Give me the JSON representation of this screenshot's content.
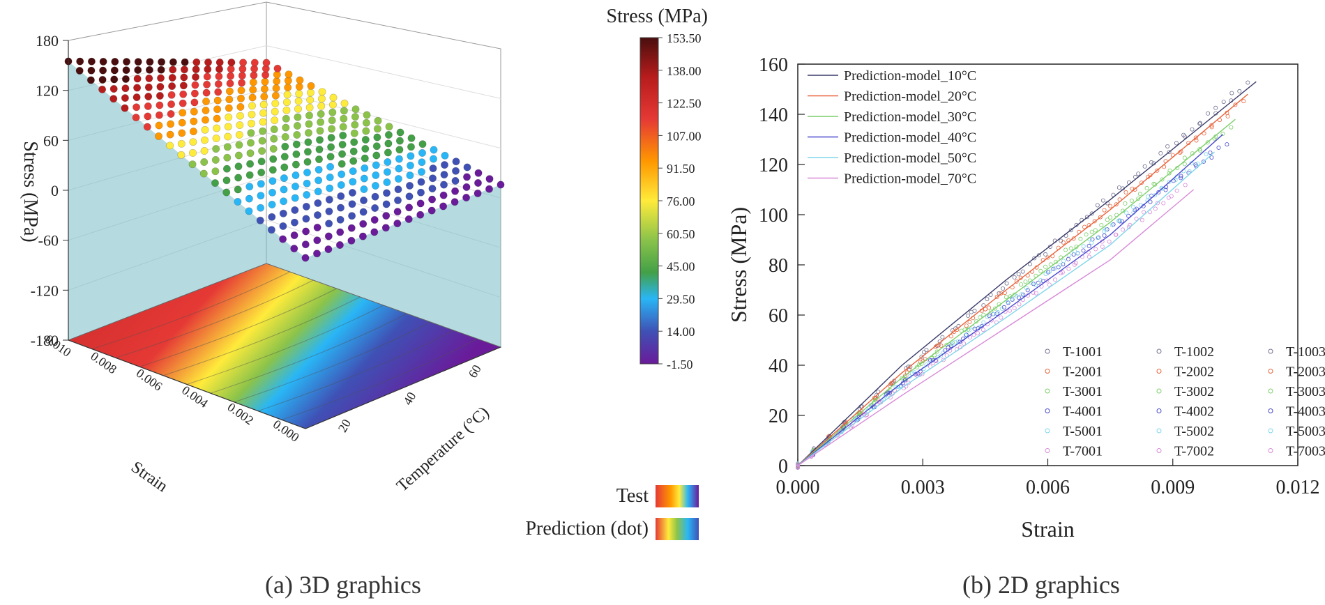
{
  "captions": {
    "left": "(a) 3D graphics",
    "right": "(b) 2D graphics"
  },
  "chart_data": [
    {
      "type": "surface3d",
      "zlabel": "Stress (MPa)",
      "xlabel": "Strain",
      "ylabel": "Temperature (°C)",
      "zticks": [
        "180",
        "120",
        "60",
        "0",
        "-60",
        "-120",
        "-180"
      ],
      "xticks": [
        "0.010",
        "0.008",
        "0.006",
        "0.004",
        "0.002",
        "0.000"
      ],
      "yticks": [
        "20",
        "40",
        "60"
      ],
      "zlim": [
        -180,
        180
      ],
      "xlim": [
        0,
        0.011
      ],
      "ylim": [
        10,
        70
      ],
      "colorbar": {
        "title": "Stress (MPa)",
        "ticks": [
          "153.50",
          "138.00",
          "122.50",
          "107.00",
          "91.50",
          "76.00",
          "60.50",
          "45.00",
          "29.50",
          "14.00",
          "-1.50"
        ],
        "range": [
          -1.5,
          153.5
        ]
      },
      "legend": [
        {
          "label": "Test",
          "kind": "surface"
        },
        {
          "label": "Prediction (dot)",
          "kind": "dots"
        }
      ],
      "colors": [
        "#6a1b9a",
        "#3f51b5",
        "#29b6f6",
        "#43a047",
        "#8bc34a",
        "#ffeb3b",
        "#ff9800",
        "#e53935",
        "#b71c1c",
        "#4a0e0e"
      ],
      "surface_model": {
        "stress_at_max_strain_10C": 153.5,
        "stress_at_max_strain_70C": 120,
        "max_strain": 0.011
      }
    },
    {
      "type": "line",
      "xlabel": "Strain",
      "ylabel": "Stress (MPa)",
      "xlim": [
        0,
        0.012
      ],
      "ylim": [
        0,
        160
      ],
      "xticks": [
        "0.000",
        "0.003",
        "0.006",
        "0.009",
        "0.012"
      ],
      "yticks": [
        "0",
        "20",
        "40",
        "60",
        "80",
        "100",
        "120",
        "140",
        "160"
      ],
      "series": [
        {
          "name": "Prediction-model_10°C",
          "color": "#3a3a6a",
          "x": [
            0,
            0.0025,
            0.005,
            0.0075,
            0.011
          ],
          "y": [
            0,
            40,
            74,
            106,
            153
          ]
        },
        {
          "name": "Prediction-model_20°C",
          "color": "#e8643c",
          "x": [
            0,
            0.0025,
            0.005,
            0.0075,
            0.0108
          ],
          "y": [
            0,
            37,
            70,
            102,
            148
          ]
        },
        {
          "name": "Prediction-model_30°C",
          "color": "#7ccf6a",
          "x": [
            0,
            0.0025,
            0.005,
            0.0075,
            0.0105
          ],
          "y": [
            0,
            35,
            66,
            97,
            138
          ]
        },
        {
          "name": "Prediction-model_40°C",
          "color": "#4a4ad0",
          "x": [
            0,
            0.0025,
            0.005,
            0.0075,
            0.0102
          ],
          "y": [
            0,
            33,
            62,
            92,
            132
          ]
        },
        {
          "name": "Prediction-model_50°C",
          "color": "#7fd6ea",
          "x": [
            0,
            0.0025,
            0.005,
            0.0075,
            0.01
          ],
          "y": [
            0,
            31,
            59,
            88,
            125
          ]
        },
        {
          "name": "Prediction-model_70°C",
          "color": "#d88ad8",
          "x": [
            0,
            0.0025,
            0.005,
            0.0075,
            0.0095
          ],
          "y": [
            0,
            28,
            55,
            82,
            110
          ]
        }
      ],
      "test_series": [
        {
          "name": "T-1001",
          "color": "#707090",
          "marker": "circle",
          "xmax": 0.0108,
          "ymax": 153
        },
        {
          "name": "T-1002",
          "color": "#707090",
          "marker": "circle-small",
          "xmax": 0.0106,
          "ymax": 150
        },
        {
          "name": "T-1003",
          "color": "#707090",
          "marker": "triangle",
          "xmax": 0.0104,
          "ymax": 146
        },
        {
          "name": "T-2001",
          "color": "#e8643c",
          "marker": "triangle-down",
          "xmax": 0.0107,
          "ymax": 145
        },
        {
          "name": "T-2002",
          "color": "#e8643c",
          "marker": "diamond",
          "xmax": 0.0105,
          "ymax": 143
        },
        {
          "name": "T-2003",
          "color": "#e8643c",
          "marker": "triangle-left",
          "xmax": 0.0103,
          "ymax": 140
        },
        {
          "name": "T-3001",
          "color": "#7ccf6a",
          "marker": "triangle-right",
          "xmax": 0.0104,
          "ymax": 135
        },
        {
          "name": "T-3002",
          "color": "#7ccf6a",
          "marker": "hexagon",
          "xmax": 0.0102,
          "ymax": 133
        },
        {
          "name": "T-3003",
          "color": "#7ccf6a",
          "marker": "star",
          "xmax": 0.01,
          "ymax": 131
        },
        {
          "name": "T-4001",
          "color": "#4a4ad0",
          "marker": "circle",
          "xmax": 0.0103,
          "ymax": 128
        },
        {
          "name": "T-4002",
          "color": "#4a4ad0",
          "marker": "diamond",
          "xmax": 0.0101,
          "ymax": 126
        },
        {
          "name": "T-4003",
          "color": "#4a4ad0",
          "marker": "plus",
          "xmax": 0.0099,
          "ymax": 124
        },
        {
          "name": "T-5001",
          "color": "#7fd6ea",
          "marker": "circle-small",
          "xmax": 0.0098,
          "ymax": 124
        },
        {
          "name": "T-5002",
          "color": "#7fd6ea",
          "marker": "cross",
          "xmax": 0.0096,
          "ymax": 121
        },
        {
          "name": "T-5003",
          "color": "#7fd6ea",
          "marker": "dash",
          "xmax": 0.0094,
          "ymax": 118
        },
        {
          "name": "T-7001",
          "color": "#d88ad8",
          "marker": "vline",
          "xmax": 0.0093,
          "ymax": 112
        },
        {
          "name": "T-7002",
          "color": "#d88ad8",
          "marker": "square",
          "xmax": 0.0091,
          "ymax": 109
        },
        {
          "name": "T-7003",
          "color": "#d88ad8",
          "marker": "circle",
          "xmax": 0.0089,
          "ymax": 106
        }
      ]
    }
  ]
}
